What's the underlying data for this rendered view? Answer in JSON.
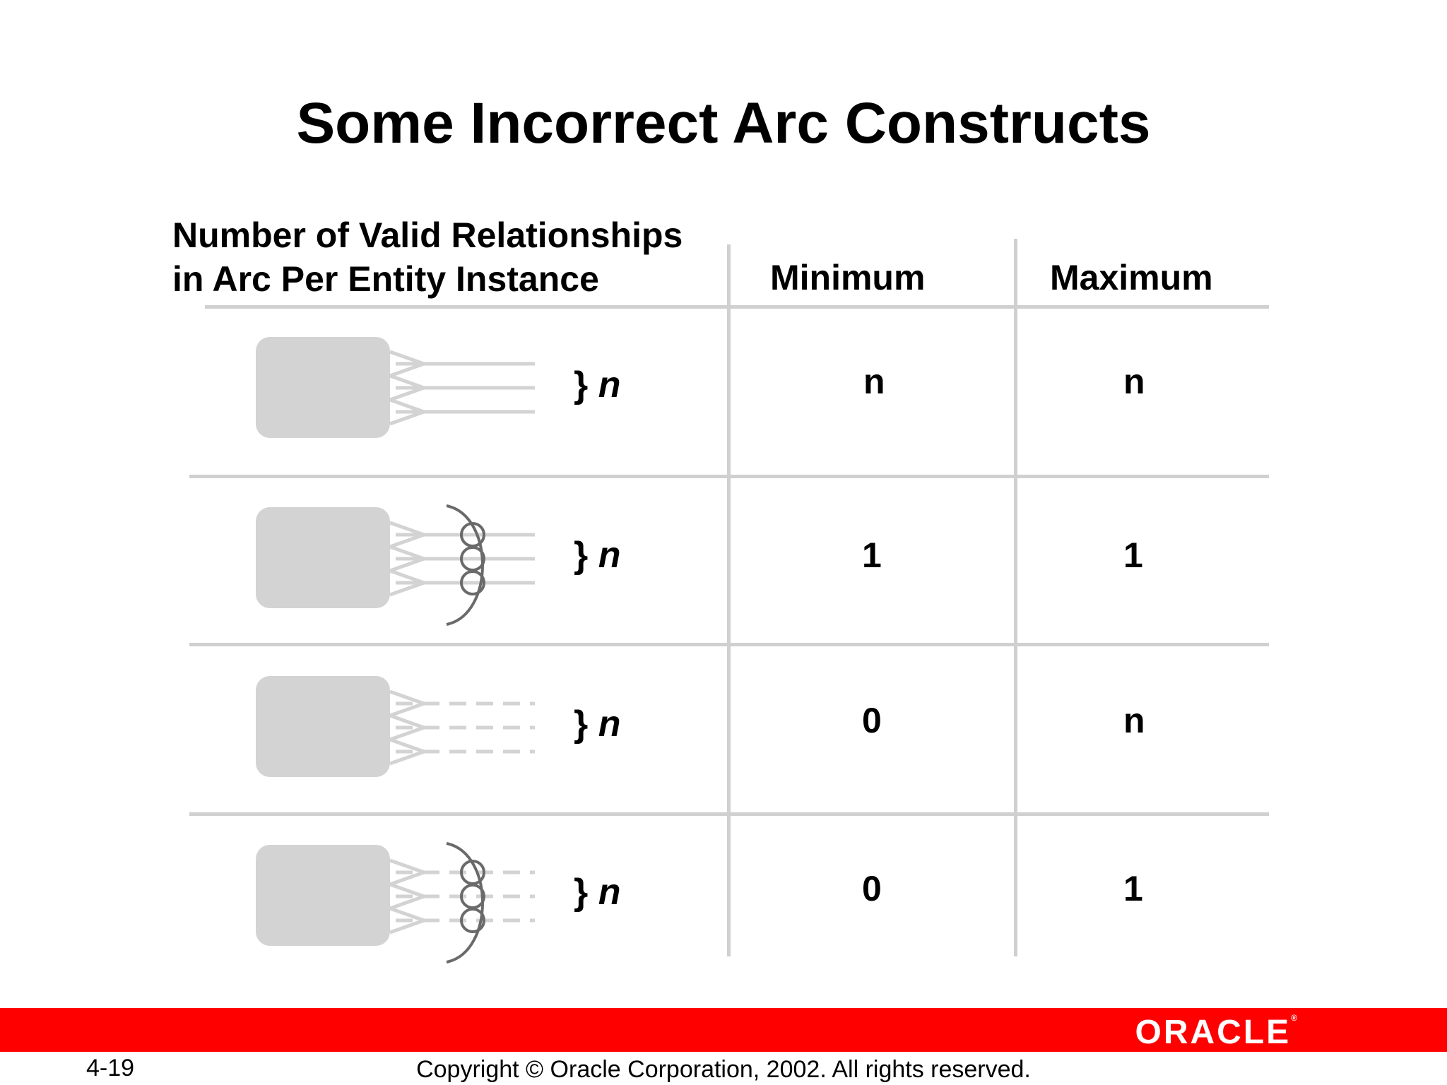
{
  "slide": {
    "title": "Some Incorrect Arc Constructs",
    "page_number": "4-19",
    "copyright": "Copyright © Oracle Corporation, 2002. All rights reserved.",
    "logo_text": "ORACLE",
    "accent_color": "#ff0000"
  },
  "table": {
    "header": {
      "description_line1": "Number of Valid Relationships",
      "description_line2": "in Arc Per Entity Instance",
      "minimum": "Minimum",
      "maximum": "Maximum"
    },
    "rows": [
      {
        "brace": "}",
        "var": "n",
        "minimum": "n",
        "maximum": "n",
        "line_style": "solid",
        "arc": false
      },
      {
        "brace": "}",
        "var": "n",
        "minimum": "1",
        "maximum": "1",
        "line_style": "solid",
        "arc": true
      },
      {
        "brace": "}",
        "var": "n",
        "minimum": "0",
        "maximum": "n",
        "line_style": "dashed",
        "arc": false
      },
      {
        "brace": "}",
        "var": "n",
        "minimum": "0",
        "maximum": "1",
        "line_style": "dashed",
        "arc": true
      }
    ]
  }
}
